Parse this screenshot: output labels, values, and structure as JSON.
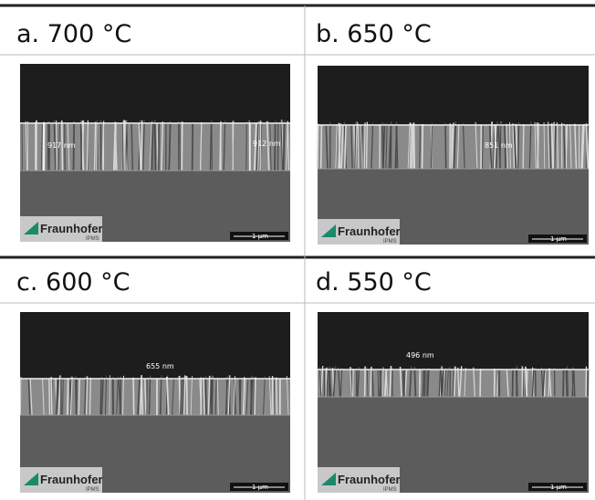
{
  "panels": [
    {
      "title": "a. 700 °C",
      "measurements": [
        "917 nm",
        "912 nm"
      ],
      "logo": "Fraunhofer",
      "institute": "IPMS",
      "scale_bar": "1 µm"
    },
    {
      "title": "b. 650 °C",
      "measurements": [
        "851 nm"
      ],
      "logo": "Fraunhofer",
      "institute": "IPMS",
      "scale_bar": "1 µm"
    },
    {
      "title": "c. 600 °C",
      "measurements": [
        "655 nm"
      ],
      "logo": "Fraunhofer",
      "institute": "IPMS",
      "scale_bar": "1 µm"
    },
    {
      "title": "d. 550 °C",
      "measurements": [
        "496 nm"
      ],
      "logo": "Fraunhofer",
      "institute": "IPMS",
      "scale_bar": "1 µm"
    }
  ]
}
